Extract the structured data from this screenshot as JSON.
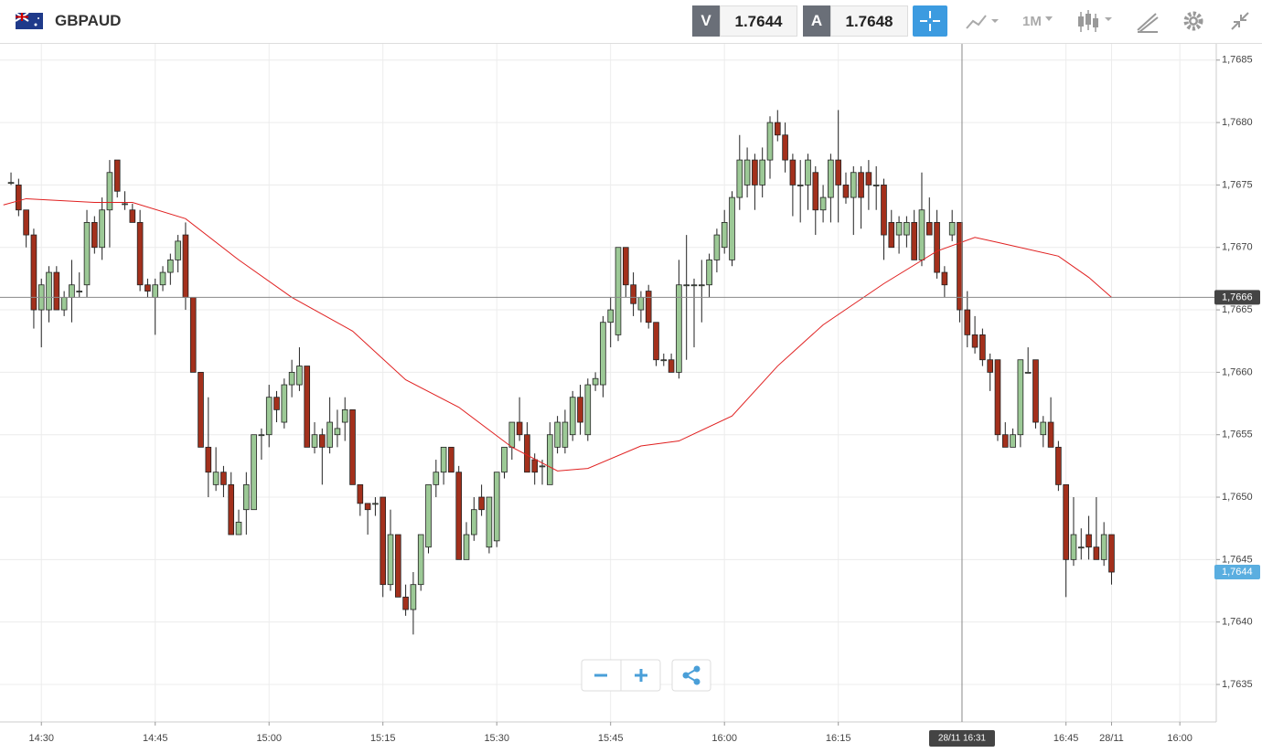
{
  "toolbar": {
    "symbol": "GBPAUD",
    "sell_label": "V",
    "sell_price": "1.7644",
    "buy_label": "A",
    "buy_price": "1.7648",
    "timeframe": "1M"
  },
  "chart_data": {
    "type": "candlestick",
    "up_color": "#9cc996",
    "down_color": "#a3301c",
    "ma_color": "#e02020",
    "grid": true,
    "xlim": [
      -1.45,
      158.8
    ],
    "ylim": [
      1.7632,
      1.76863
    ],
    "xticks": [
      {
        "value": 4,
        "label": "14:30"
      },
      {
        "value": 19,
        "label": "14:45"
      },
      {
        "value": 34,
        "label": "15:00"
      },
      {
        "value": 49,
        "label": "15:15"
      },
      {
        "value": 64,
        "label": "15:30"
      },
      {
        "value": 79,
        "label": "15:45"
      },
      {
        "value": 94,
        "label": "16:00"
      },
      {
        "value": 109,
        "label": "16:15"
      },
      {
        "value": 139,
        "label": "16:45"
      },
      {
        "value": 145,
        "label": "28/11"
      },
      {
        "value": 154,
        "label": "16:00"
      }
    ],
    "yticks": [
      {
        "value": 1.7635,
        "label": "1,7635"
      },
      {
        "value": 1.764,
        "label": "1,7640"
      },
      {
        "value": 1.7645,
        "label": "1,7645"
      },
      {
        "value": 1.765,
        "label": "1,7650"
      },
      {
        "value": 1.7655,
        "label": "1,7655"
      },
      {
        "value": 1.766,
        "label": "1,7660"
      },
      {
        "value": 1.7665,
        "label": "1,7665"
      },
      {
        "value": 1.767,
        "label": "1,7670"
      },
      {
        "value": 1.7675,
        "label": "1,7675"
      },
      {
        "value": 1.768,
        "label": "1,7680"
      },
      {
        "value": 1.7685,
        "label": "1,7685"
      }
    ],
    "candles": [
      [
        1.76752,
        1.7676,
        1.7675,
        1.76752
      ],
      [
        1.7675,
        1.76755,
        1.76725,
        1.7673
      ],
      [
        1.7673,
        1.7673,
        1.767,
        1.7671
      ],
      [
        1.7671,
        1.76715,
        1.76635,
        1.7665
      ],
      [
        1.7665,
        1.76675,
        1.7662,
        1.7667
      ],
      [
        1.7665,
        1.76685,
        1.7664,
        1.7668
      ],
      [
        1.7668,
        1.76685,
        1.7665,
        1.7665
      ],
      [
        1.7665,
        1.76665,
        1.76645,
        1.7666
      ],
      [
        1.7666,
        1.7669,
        1.7664,
        1.7667
      ],
      [
        1.76665,
        1.7668,
        1.7666,
        1.76665
      ],
      [
        1.7667,
        1.7673,
        1.7666,
        1.7672
      ],
      [
        1.7672,
        1.76725,
        1.76695,
        1.767
      ],
      [
        1.767,
        1.7674,
        1.7669,
        1.7673
      ],
      [
        1.7673,
        1.7677,
        1.767,
        1.7676
      ],
      [
        1.7677,
        1.7677,
        1.7674,
        1.76745
      ],
      [
        1.76735,
        1.76745,
        1.7673,
        1.76735
      ],
      [
        1.7673,
        1.76735,
        1.7672,
        1.7672
      ],
      [
        1.7672,
        1.7673,
        1.76665,
        1.7667
      ],
      [
        1.7667,
        1.76675,
        1.7666,
        1.76665
      ],
      [
        1.7666,
        1.76675,
        1.7663,
        1.7667
      ],
      [
        1.7667,
        1.76685,
        1.76665,
        1.7668
      ],
      [
        1.7668,
        1.76695,
        1.7667,
        1.7669
      ],
      [
        1.7669,
        1.7671,
        1.7668,
        1.76705
      ],
      [
        1.7671,
        1.7672,
        1.7665,
        1.7666
      ],
      [
        1.7666,
        1.7666,
        1.766,
        1.766
      ],
      [
        1.766,
        1.766,
        1.7654,
        1.7654
      ],
      [
        1.7654,
        1.7658,
        1.765,
        1.7652
      ],
      [
        1.7651,
        1.7654,
        1.76505,
        1.7652
      ],
      [
        1.7652,
        1.76525,
        1.765,
        1.7651
      ],
      [
        1.7651,
        1.7652,
        1.7647,
        1.7647
      ],
      [
        1.7647,
        1.7649,
        1.7647,
        1.7648
      ],
      [
        1.7649,
        1.7652,
        1.7647,
        1.7651
      ],
      [
        1.7649,
        1.7655,
        1.7649,
        1.7655
      ],
      [
        1.7655,
        1.76555,
        1.7653,
        1.7655
      ],
      [
        1.7655,
        1.7659,
        1.7654,
        1.7658
      ],
      [
        1.7658,
        1.76585,
        1.7656,
        1.7657
      ],
      [
        1.7656,
        1.76595,
        1.76555,
        1.7659
      ],
      [
        1.7659,
        1.7661,
        1.7658,
        1.766
      ],
      [
        1.7659,
        1.7662,
        1.76585,
        1.76605
      ],
      [
        1.76605,
        1.76605,
        1.7654,
        1.7654
      ],
      [
        1.7654,
        1.7656,
        1.76535,
        1.7655
      ],
      [
        1.7655,
        1.76555,
        1.7651,
        1.7654
      ],
      [
        1.7654,
        1.7658,
        1.76535,
        1.7656
      ],
      [
        1.7655,
        1.7657,
        1.7654,
        1.76555
      ],
      [
        1.7656,
        1.7658,
        1.76545,
        1.7657
      ],
      [
        1.7657,
        1.7657,
        1.7651,
        1.7651
      ],
      [
        1.7651,
        1.7651,
        1.76485,
        1.76495
      ],
      [
        1.76495,
        1.76495,
        1.7647,
        1.7649
      ],
      [
        1.76495,
        1.765,
        1.76485,
        1.76495
      ],
      [
        1.765,
        1.765,
        1.7642,
        1.7643
      ],
      [
        1.7643,
        1.7649,
        1.76425,
        1.7647
      ],
      [
        1.7647,
        1.7647,
        1.7642,
        1.7642
      ],
      [
        1.7642,
        1.7643,
        1.76405,
        1.7641
      ],
      [
        1.7641,
        1.7644,
        1.7639,
        1.7643
      ],
      [
        1.7643,
        1.7647,
        1.76425,
        1.7647
      ],
      [
        1.7646,
        1.7651,
        1.76455,
        1.7651
      ],
      [
        1.7651,
        1.7653,
        1.765,
        1.7652
      ],
      [
        1.7652,
        1.7654,
        1.7651,
        1.7654
      ],
      [
        1.7654,
        1.7654,
        1.7652,
        1.7652
      ],
      [
        1.7652,
        1.76525,
        1.7645,
        1.7645
      ],
      [
        1.7645,
        1.7648,
        1.7645,
        1.7647
      ],
      [
        1.7647,
        1.765,
        1.76465,
        1.7649
      ],
      [
        1.765,
        1.7651,
        1.76485,
        1.7649
      ],
      [
        1.7646,
        1.765,
        1.76455,
        1.765
      ],
      [
        1.76465,
        1.7652,
        1.7646,
        1.7652
      ],
      [
        1.7652,
        1.7654,
        1.76515,
        1.7654
      ],
      [
        1.7654,
        1.7656,
        1.7653,
        1.7656
      ],
      [
        1.7656,
        1.7658,
        1.76545,
        1.7655
      ],
      [
        1.7655,
        1.7656,
        1.7652,
        1.7652
      ],
      [
        1.7653,
        1.76535,
        1.7651,
        1.7652
      ],
      [
        1.76525,
        1.7653,
        1.7651,
        1.76525
      ],
      [
        1.7651,
        1.7656,
        1.7651,
        1.7655
      ],
      [
        1.7654,
        1.76565,
        1.76535,
        1.7656
      ],
      [
        1.7654,
        1.7657,
        1.76535,
        1.7656
      ],
      [
        1.7655,
        1.76585,
        1.76545,
        1.7658
      ],
      [
        1.7658,
        1.7659,
        1.7655,
        1.7656
      ],
      [
        1.7655,
        1.76595,
        1.76545,
        1.7659
      ],
      [
        1.7659,
        1.766,
        1.76585,
        1.76595
      ],
      [
        1.7659,
        1.76645,
        1.7658,
        1.7664
      ],
      [
        1.7664,
        1.7666,
        1.7662,
        1.7665
      ],
      [
        1.7663,
        1.767,
        1.76625,
        1.767
      ],
      [
        1.767,
        1.767,
        1.7666,
        1.7667
      ],
      [
        1.7667,
        1.7668,
        1.76645,
        1.76655
      ],
      [
        1.7665,
        1.76665,
        1.7664,
        1.7666
      ],
      [
        1.76665,
        1.7667,
        1.76635,
        1.7664
      ],
      [
        1.7664,
        1.7664,
        1.76605,
        1.7661
      ],
      [
        1.7661,
        1.76615,
        1.76605,
        1.7661
      ],
      [
        1.7661,
        1.76615,
        1.766,
        1.766
      ],
      [
        1.766,
        1.7669,
        1.76595,
        1.7667
      ],
      [
        1.7667,
        1.7671,
        1.7661,
        1.7667
      ],
      [
        1.7667,
        1.76675,
        1.7662,
        1.7667
      ],
      [
        1.7667,
        1.7669,
        1.7664,
        1.7667
      ],
      [
        1.7667,
        1.76695,
        1.7666,
        1.7669
      ],
      [
        1.7669,
        1.76715,
        1.7668,
        1.7671
      ],
      [
        1.767,
        1.7673,
        1.76695,
        1.7672
      ],
      [
        1.7669,
        1.76745,
        1.76685,
        1.7674
      ],
      [
        1.7674,
        1.7679,
        1.7673,
        1.7677
      ],
      [
        1.7675,
        1.7678,
        1.7674,
        1.7677
      ],
      [
        1.7677,
        1.76775,
        1.7673,
        1.7675
      ],
      [
        1.7675,
        1.7678,
        1.7674,
        1.7677
      ],
      [
        1.7677,
        1.76805,
        1.76755,
        1.768
      ],
      [
        1.768,
        1.7681,
        1.76785,
        1.7679
      ],
      [
        1.7679,
        1.768,
        1.7676,
        1.7677
      ],
      [
        1.7677,
        1.76775,
        1.76725,
        1.7675
      ],
      [
        1.7675,
        1.7677,
        1.7672,
        1.7675
      ],
      [
        1.7675,
        1.76775,
        1.7673,
        1.7677
      ],
      [
        1.7676,
        1.76765,
        1.7671,
        1.7673
      ],
      [
        1.7673,
        1.7675,
        1.7672,
        1.7674
      ],
      [
        1.7674,
        1.76775,
        1.7672,
        1.7677
      ],
      [
        1.7677,
        1.7681,
        1.7672,
        1.7675
      ],
      [
        1.7675,
        1.7676,
        1.76735,
        1.7674
      ],
      [
        1.7674,
        1.76765,
        1.7671,
        1.7676
      ],
      [
        1.7676,
        1.76765,
        1.76715,
        1.7674
      ],
      [
        1.7676,
        1.7677,
        1.7673,
        1.7675
      ],
      [
        1.7675,
        1.76765,
        1.7673,
        1.7675
      ],
      [
        1.7675,
        1.76755,
        1.7669,
        1.7671
      ],
      [
        1.7672,
        1.7673,
        1.767,
        1.767
      ],
      [
        1.7671,
        1.76725,
        1.76695,
        1.7672
      ],
      [
        1.7671,
        1.76725,
        1.767,
        1.7672
      ],
      [
        1.7672,
        1.7673,
        1.7669,
        1.7669
      ],
      [
        1.7669,
        1.7676,
        1.76685,
        1.7673
      ],
      [
        1.7672,
        1.7674,
        1.7671,
        1.7671
      ],
      [
        1.7672,
        1.7673,
        1.76675,
        1.7668
      ],
      [
        1.7668,
        1.76685,
        1.7666,
        1.7667
      ],
      [
        1.7671,
        1.7673,
        1.76705,
        1.7672
      ],
      [
        1.7672,
        1.7672,
        1.7664,
        1.7665
      ],
      [
        1.7665,
        1.76665,
        1.7662,
        1.7663
      ],
      [
        1.7663,
        1.76645,
        1.76615,
        1.7662
      ],
      [
        1.7663,
        1.76635,
        1.76605,
        1.7661
      ],
      [
        1.7661,
        1.76615,
        1.76585,
        1.766
      ],
      [
        1.7661,
        1.7661,
        1.76545,
        1.7655
      ],
      [
        1.7655,
        1.7656,
        1.7654,
        1.7654
      ],
      [
        1.7654,
        1.76555,
        1.7654,
        1.7655
      ],
      [
        1.7655,
        1.7661,
        1.7654,
        1.7661
      ],
      [
        1.766,
        1.7662,
        1.766,
        1.766
      ],
      [
        1.7661,
        1.7661,
        1.76555,
        1.7656
      ],
      [
        1.7655,
        1.76565,
        1.7654,
        1.7656
      ],
      [
        1.7656,
        1.7658,
        1.7654,
        1.7654
      ],
      [
        1.7654,
        1.76545,
        1.76505,
        1.7651
      ],
      [
        1.7651,
        1.7651,
        1.7642,
        1.7645
      ],
      [
        1.7645,
        1.765,
        1.76445,
        1.7647
      ],
      [
        1.7646,
        1.76475,
        1.7645,
        1.7646
      ],
      [
        1.7647,
        1.76485,
        1.7645,
        1.7646
      ],
      [
        1.7646,
        1.765,
        1.7645,
        1.7645
      ],
      [
        1.7645,
        1.7648,
        1.76445,
        1.7647
      ],
      [
        1.7647,
        1.7647,
        1.7643,
        1.7644
      ]
    ],
    "moving_average": {
      "x": [
        -1,
        2,
        11,
        16,
        23,
        30,
        37,
        45,
        52,
        59,
        66,
        72,
        76,
        83,
        88,
        95,
        101,
        107,
        115,
        122,
        127,
        130,
        138,
        142,
        145
      ],
      "values": [
        1.76734,
        1.76739,
        1.76736,
        1.76736,
        1.76723,
        1.7669,
        1.7666,
        1.76633,
        1.76594,
        1.76572,
        1.7654,
        1.76521,
        1.76523,
        1.76541,
        1.76545,
        1.76565,
        1.76605,
        1.76638,
        1.76671,
        1.76697,
        1.76708,
        1.76704,
        1.76693,
        1.76676,
        1.7666
      ]
    },
    "crosshair": {
      "x": 125.3,
      "x_label": "28/11 16:31",
      "y": 1.7666,
      "y_label": "1,7666"
    },
    "last_price": {
      "value": 1.7644,
      "label": "1,7644"
    }
  }
}
